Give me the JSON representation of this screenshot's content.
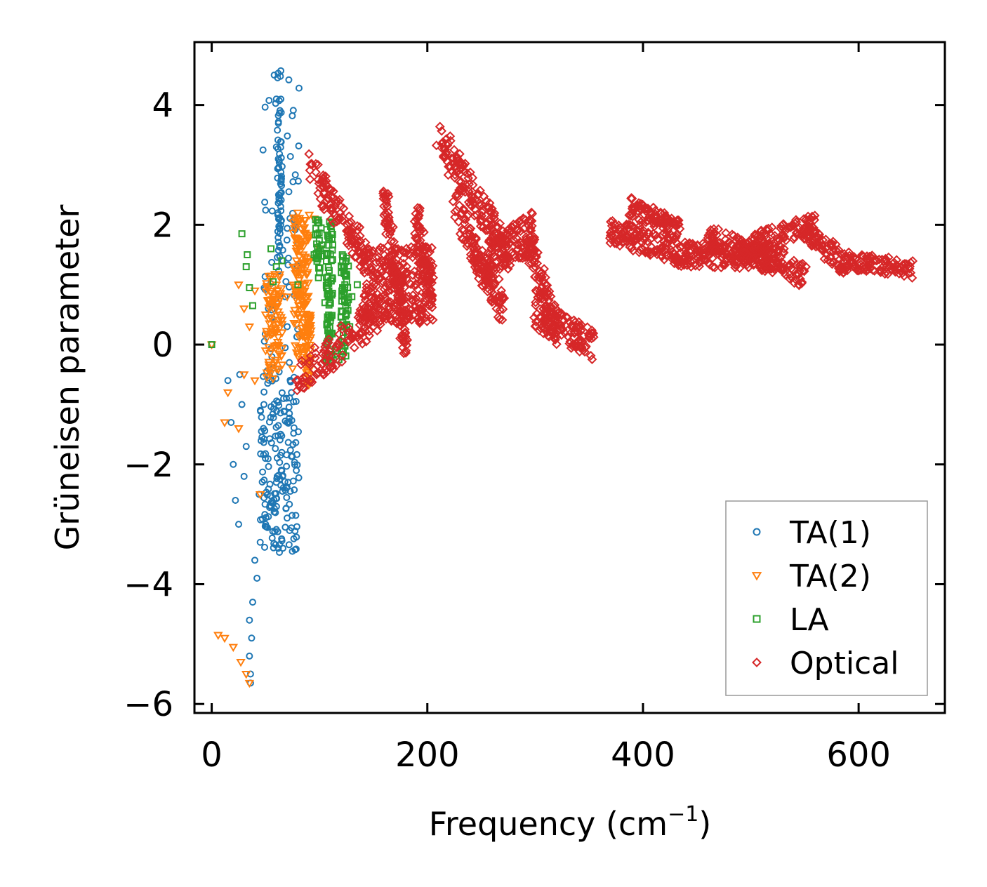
{
  "chart_data": {
    "type": "scatter",
    "xlabel": "Frequency (cm",
    "xlabel_sup": "−1",
    "xlabel_close": ")",
    "ylabel": "Grüneisen parameter",
    "xlim": [
      -16,
      680
    ],
    "ylim": [
      -6.15,
      5.05
    ],
    "xticks": [
      0,
      200,
      400,
      600
    ],
    "xtick_labels": [
      "0",
      "200",
      "400",
      "600"
    ],
    "yticks": [
      4,
      2,
      0,
      -2,
      -4,
      -6
    ],
    "ytick_labels": [
      "4",
      "2",
      "0",
      "−2",
      "−4",
      "−6"
    ],
    "legend_position": "lower-right",
    "series": [
      {
        "name": "TA(1)",
        "label": "TA(1)",
        "marker": "circle",
        "color": "#1f77b4",
        "shape_points": [
          [
            0,
            0
          ],
          [
            58,
            4.5
          ],
          [
            60,
            4.1
          ],
          [
            60,
            3.3
          ],
          [
            62,
            2.5
          ],
          [
            64,
            2.0
          ],
          [
            66,
            1.4
          ],
          [
            68,
            0.8
          ],
          [
            70,
            0.3
          ],
          [
            72,
            -0.3
          ],
          [
            74,
            -0.8
          ],
          [
            70,
            -1.3
          ],
          [
            65,
            -1.8
          ],
          [
            60,
            -2.3
          ],
          [
            55,
            -2.7
          ],
          [
            50,
            -3.0
          ],
          [
            45,
            -3.3
          ],
          [
            40,
            -3.6
          ],
          [
            42,
            -3.9
          ],
          [
            38,
            -4.3
          ],
          [
            35,
            -4.6
          ],
          [
            37,
            -4.9
          ],
          [
            35,
            -5.2
          ],
          [
            36,
            -5.5
          ],
          [
            36,
            -5.65
          ],
          [
            28,
            -1.0
          ],
          [
            22,
            -2.6
          ],
          [
            25,
            -3.0
          ],
          [
            30,
            -2.2
          ],
          [
            15,
            -0.6
          ],
          [
            18,
            -1.3
          ],
          [
            20,
            -2.0
          ],
          [
            26,
            -0.5
          ],
          [
            32,
            -1.7
          ],
          [
            44,
            -2.5
          ],
          [
            48,
            -1.4
          ]
        ]
      },
      {
        "name": "TA(2)",
        "label": "TA(2)",
        "marker": "triangle-down",
        "color": "#ff7f0e",
        "shape_points": [
          [
            0,
            0
          ],
          [
            25,
            1.0
          ],
          [
            30,
            0.6
          ],
          [
            35,
            0.3
          ],
          [
            40,
            0.9
          ],
          [
            50,
            0.5
          ],
          [
            60,
            1.0
          ],
          [
            70,
            0.8
          ],
          [
            80,
            1.3
          ],
          [
            90,
            1.8
          ],
          [
            95,
            2.1
          ],
          [
            100,
            1.6
          ],
          [
            85,
            0.2
          ],
          [
            80,
            -0.2
          ],
          [
            90,
            -0.5
          ],
          [
            75,
            -0.4
          ],
          [
            60,
            -0.4
          ],
          [
            50,
            -0.1
          ],
          [
            40,
            -0.6
          ],
          [
            30,
            -0.5
          ],
          [
            15,
            -0.8
          ],
          [
            12,
            -1.3
          ],
          [
            25,
            -1.4
          ],
          [
            45,
            -2.5
          ],
          [
            6,
            -4.85
          ],
          [
            12,
            -4.9
          ],
          [
            20,
            -5.05
          ],
          [
            27,
            -5.3
          ],
          [
            32,
            -5.5
          ],
          [
            35,
            -5.65
          ]
        ]
      },
      {
        "name": "LA",
        "label": "LA",
        "marker": "square",
        "color": "#2ca02c",
        "shape_points": [
          [
            0,
            0
          ],
          [
            28,
            1.85
          ],
          [
            33,
            1.5
          ],
          [
            32,
            1.3
          ],
          [
            35,
            0.95
          ],
          [
            38,
            0.65
          ],
          [
            55,
            1.6
          ],
          [
            60,
            1.3
          ],
          [
            57,
            1.05
          ],
          [
            65,
            1.4
          ],
          [
            80,
            1.0
          ],
          [
            95,
            1.5
          ],
          [
            100,
            1.2
          ],
          [
            105,
            0.7
          ],
          [
            110,
            0.4
          ],
          [
            115,
            -0.1
          ],
          [
            118,
            -0.25
          ],
          [
            122,
            0.2
          ],
          [
            125,
            0.5
          ],
          [
            130,
            0.8
          ],
          [
            135,
            1.0
          ],
          [
            128,
            0.3
          ]
        ]
      },
      {
        "name": "Optical",
        "label": "Optical",
        "marker": "diamond",
        "color": "#d62728",
        "bands": [
          {
            "start": [
              92,
              2.9
            ],
            "end": [
              145,
              1.4
            ],
            "width": 0.6,
            "count": 120
          },
          {
            "start": [
              80,
              -0.6
            ],
            "end": [
              160,
              0.6
            ],
            "width": 0.6,
            "count": 120
          },
          {
            "start": [
              140,
              1.0
            ],
            "end": [
              205,
              1.0
            ],
            "width": 1.3,
            "count": 260
          },
          {
            "start": [
              160,
              2.5
            ],
            "end": [
              180,
              0.0
            ],
            "width": 0.6,
            "count": 120
          },
          {
            "start": [
              190,
              2.1
            ],
            "end": [
              205,
              0.7
            ],
            "width": 0.6,
            "count": 90
          },
          {
            "start": [
              210,
              3.45
            ],
            "end": [
              275,
              1.5
            ],
            "width": 0.6,
            "count": 160
          },
          {
            "start": [
              225,
              2.3
            ],
            "end": [
              270,
              0.6
            ],
            "width": 0.6,
            "count": 140
          },
          {
            "start": [
              255,
              1.4
            ],
            "end": [
              300,
              1.9
            ],
            "width": 0.7,
            "count": 110
          },
          {
            "start": [
              290,
              1.9
            ],
            "end": [
              320,
              0.2
            ],
            "width": 0.7,
            "count": 120
          },
          {
            "start": [
              300,
              0.5
            ],
            "end": [
              355,
              0.0
            ],
            "width": 0.5,
            "count": 110
          },
          {
            "start": [
              370,
              1.9
            ],
            "end": [
              440,
              1.5
            ],
            "width": 0.45,
            "count": 150
          },
          {
            "start": [
              388,
              2.3
            ],
            "end": [
              435,
              1.9
            ],
            "width": 0.35,
            "count": 90
          },
          {
            "start": [
              440,
              1.5
            ],
            "end": [
              530,
              1.45
            ],
            "width": 0.4,
            "count": 180
          },
          {
            "start": [
              460,
              1.8
            ],
            "end": [
              550,
              1.15
            ],
            "width": 0.4,
            "count": 150
          },
          {
            "start": [
              500,
              1.7
            ],
            "end": [
              560,
              2.0
            ],
            "width": 0.35,
            "count": 90
          },
          {
            "start": [
              545,
              2.0
            ],
            "end": [
              590,
              1.3
            ],
            "width": 0.35,
            "count": 90
          },
          {
            "start": [
              590,
              1.4
            ],
            "end": [
              650,
              1.25
            ],
            "width": 0.3,
            "count": 100
          }
        ]
      }
    ]
  }
}
